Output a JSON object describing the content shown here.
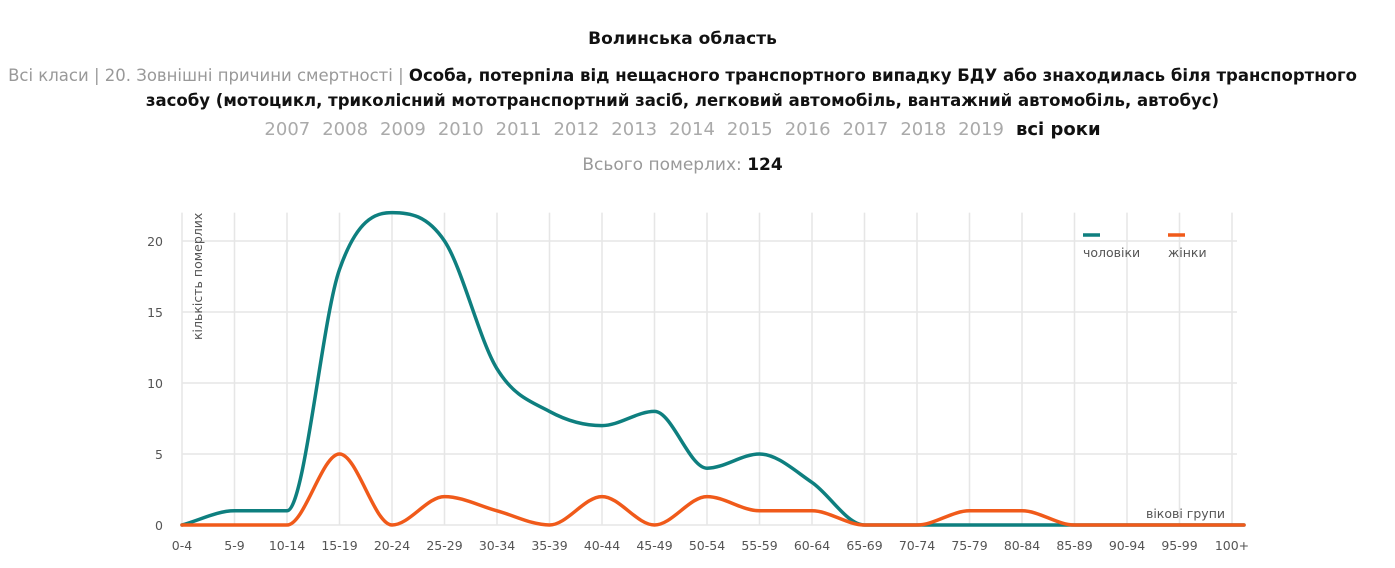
{
  "header": {
    "title": "Волинська область",
    "breadcrumb": [
      "Всі класи",
      "20. Зовнішні причини смертності"
    ],
    "separator": "|",
    "cause": "Особа, потерпіла від нещасного транспортного випадку БДУ або знаходилась біля транспортного засобу (мотоцикл, триколісний мототранспортний засіб, легковий автомобіль, вантажний автомобіль, автобус)",
    "years": [
      "2007",
      "2008",
      "2009",
      "2010",
      "2011",
      "2012",
      "2013",
      "2014",
      "2015",
      "2016",
      "2017",
      "2018",
      "2019",
      "всі роки"
    ],
    "active_year": "всі роки",
    "total_label": "Всього померлих:",
    "total_value": "124"
  },
  "chart_data": {
    "type": "line",
    "xlabel": "вікові групи",
    "ylabel": "кількість померлих",
    "categories": [
      "0-4",
      "5-9",
      "10-14",
      "15-19",
      "20-24",
      "25-29",
      "30-34",
      "35-39",
      "40-44",
      "45-49",
      "50-54",
      "55-59",
      "60-64",
      "65-69",
      "70-74",
      "75-79",
      "80-84",
      "85-89",
      "90-94",
      "95-99",
      "100+"
    ],
    "ylim": [
      0,
      22
    ],
    "yticks": [
      0,
      5,
      10,
      15,
      20
    ],
    "grid": true,
    "legend_position": "top-right",
    "series": [
      {
        "name": "чоловіки",
        "color": "#0e7f7f",
        "values": [
          0,
          1,
          1,
          18,
          22,
          20,
          11,
          8,
          7,
          8,
          4,
          5,
          3,
          0,
          0,
          0,
          0,
          0,
          0,
          0,
          0
        ]
      },
      {
        "name": "жінки",
        "color": "#f05a1a",
        "values": [
          0,
          0,
          0,
          5,
          0,
          2,
          1,
          0,
          2,
          0,
          2,
          1,
          1,
          0,
          0,
          1,
          1,
          0,
          0,
          0,
          0
        ]
      }
    ]
  }
}
